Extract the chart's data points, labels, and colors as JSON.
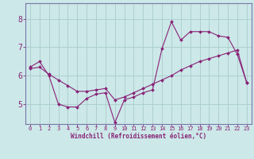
{
  "xlabel": "Windchill (Refroidissement éolien,°C)",
  "background_color": "#cce8e8",
  "grid_color": "#aacccc",
  "line_color": "#882277",
  "spine_color": "#7777aa",
  "x_ticks": [
    0,
    1,
    2,
    3,
    4,
    5,
    6,
    7,
    8,
    9,
    10,
    11,
    12,
    13,
    14,
    15,
    16,
    17,
    18,
    19,
    20,
    21,
    22,
    23
  ],
  "y_ticks": [
    5,
    6,
    7,
    8
  ],
  "ylim": [
    4.3,
    8.55
  ],
  "xlim": [
    -0.5,
    23.5
  ],
  "series1_x": [
    0,
    1,
    2,
    3,
    4,
    5,
    6,
    7,
    8,
    9,
    10,
    11,
    12,
    13,
    14,
    15,
    16,
    17,
    18,
    19,
    20,
    21,
    22,
    23
  ],
  "series1_y": [
    6.3,
    6.5,
    6.0,
    5.0,
    4.9,
    4.9,
    5.2,
    5.35,
    5.4,
    4.35,
    5.15,
    5.25,
    5.4,
    5.5,
    6.95,
    7.9,
    7.25,
    7.55,
    7.55,
    7.55,
    7.4,
    7.35,
    6.75,
    5.75
  ],
  "series2_x": [
    0,
    1,
    2,
    3,
    4,
    5,
    6,
    7,
    8,
    9,
    10,
    11,
    12,
    13,
    14,
    15,
    16,
    17,
    18,
    19,
    20,
    21,
    22,
    23
  ],
  "series2_y": [
    6.25,
    6.3,
    6.05,
    5.85,
    5.65,
    5.45,
    5.45,
    5.5,
    5.55,
    5.15,
    5.25,
    5.4,
    5.55,
    5.7,
    5.85,
    6.0,
    6.2,
    6.35,
    6.5,
    6.6,
    6.7,
    6.8,
    6.9,
    5.75
  ]
}
